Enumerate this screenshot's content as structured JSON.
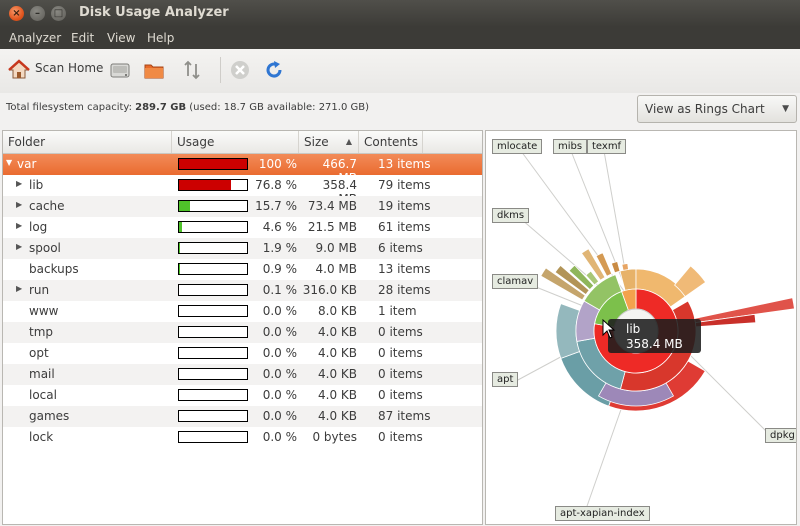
{
  "window": {
    "title": "Disk Usage Analyzer"
  },
  "menu": [
    "Analyzer",
    "Edit",
    "View",
    "Help"
  ],
  "toolbar": {
    "scan_home_label": "Scan Home"
  },
  "capacity": {
    "prefix": "Total filesystem capacity:",
    "total": "289.7 GB",
    "detail": "(used: 18.7 GB available: 271.0 GB)"
  },
  "view_combo": {
    "value": "View as Rings Chart"
  },
  "columns": [
    "Folder",
    "Usage",
    "Size",
    "Contents"
  ],
  "rows": [
    {
      "name": "var",
      "percent": "100 %",
      "usage": 1.0,
      "size": "466.7 MB",
      "contents": "13 items",
      "expander": "▼",
      "color": "#cc0000"
    },
    {
      "name": "lib",
      "percent": "76.8 %",
      "usage": 0.768,
      "size": "358.4 MB",
      "contents": "79 items",
      "expander": "▶",
      "color": "#cc0000"
    },
    {
      "name": "cache",
      "percent": "15.7 %",
      "usage": 0.157,
      "size": "73.4 MB",
      "contents": "19 items",
      "expander": "▶",
      "color": "#4fc22a"
    },
    {
      "name": "log",
      "percent": "4.6 %",
      "usage": 0.046,
      "size": "21.5 MB",
      "contents": "61 items",
      "expander": "▶",
      "color": "#4fc22a"
    },
    {
      "name": "spool",
      "percent": "1.9 %",
      "usage": 0.019,
      "size": "9.0 MB",
      "contents": "6 items",
      "expander": "▶",
      "color": "#4fc22a"
    },
    {
      "name": "backups",
      "percent": "0.9 %",
      "usage": 0.009,
      "size": "4.0 MB",
      "contents": "13 items",
      "expander": "",
      "color": "#4fc22a"
    },
    {
      "name": "run",
      "percent": "0.1 %",
      "usage": 0.001,
      "size": "316.0 KB",
      "contents": "28 items",
      "expander": "▶",
      "color": "#4fc22a"
    },
    {
      "name": "www",
      "percent": "0.0 %",
      "usage": 0,
      "size": "8.0 KB",
      "contents": "1 item",
      "expander": "",
      "color": "#4fc22a"
    },
    {
      "name": "tmp",
      "percent": "0.0 %",
      "usage": 0,
      "size": "4.0 KB",
      "contents": "0 items",
      "expander": "",
      "color": "#4fc22a"
    },
    {
      "name": "opt",
      "percent": "0.0 %",
      "usage": 0,
      "size": "4.0 KB",
      "contents": "0 items",
      "expander": "",
      "color": "#4fc22a"
    },
    {
      "name": "mail",
      "percent": "0.0 %",
      "usage": 0,
      "size": "4.0 KB",
      "contents": "0 items",
      "expander": "",
      "color": "#4fc22a"
    },
    {
      "name": "local",
      "percent": "0.0 %",
      "usage": 0,
      "size": "4.0 KB",
      "contents": "0 items",
      "expander": "",
      "color": "#4fc22a"
    },
    {
      "name": "games",
      "percent": "0.0 %",
      "usage": 0,
      "size": "4.0 KB",
      "contents": "87 items",
      "expander": "",
      "color": "#4fc22a"
    },
    {
      "name": "lock",
      "percent": "0.0 %",
      "usage": 0,
      "size": "0 bytes",
      "contents": "0 items",
      "expander": "",
      "color": "#4fc22a"
    }
  ],
  "ring_labels": [
    "mlocate",
    "mibs",
    "texmf",
    "dkms",
    "clamav",
    "apt",
    "dpkg",
    "apt-xapian-index"
  ],
  "tooltip": {
    "name": "lib",
    "size": "358.4 MB"
  }
}
